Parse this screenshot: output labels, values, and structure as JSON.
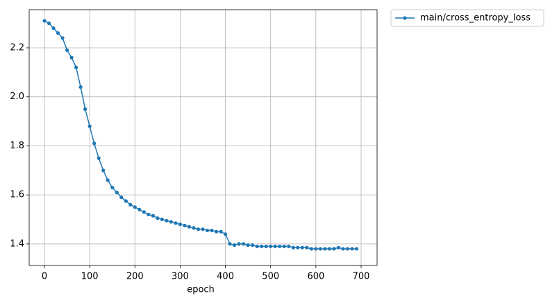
{
  "chart_data": {
    "type": "line",
    "xlabel": "epoch",
    "x": [
      0,
      10,
      20,
      30,
      40,
      50,
      60,
      70,
      80,
      90,
      100,
      110,
      120,
      130,
      140,
      150,
      160,
      170,
      180,
      190,
      200,
      210,
      220,
      230,
      240,
      250,
      260,
      270,
      280,
      290,
      300,
      310,
      320,
      330,
      340,
      350,
      360,
      370,
      380,
      390,
      400,
      410,
      420,
      430,
      440,
      450,
      460,
      470,
      480,
      490,
      500,
      510,
      520,
      530,
      540,
      550,
      560,
      570,
      580,
      590,
      600,
      610,
      620,
      630,
      640,
      650,
      660,
      670,
      680,
      690
    ],
    "series": [
      {
        "name": "main/cross_entropy_loss",
        "color": "#1f77b4",
        "values": [
          2.31,
          2.3,
          2.28,
          2.26,
          2.24,
          2.19,
          2.16,
          2.12,
          2.04,
          1.95,
          1.88,
          1.81,
          1.75,
          1.7,
          1.66,
          1.63,
          1.61,
          1.59,
          1.575,
          1.56,
          1.55,
          1.54,
          1.53,
          1.52,
          1.515,
          1.505,
          1.5,
          1.495,
          1.49,
          1.485,
          1.48,
          1.475,
          1.47,
          1.465,
          1.46,
          1.46,
          1.455,
          1.455,
          1.45,
          1.45,
          1.44,
          1.4,
          1.395,
          1.4,
          1.4,
          1.395,
          1.395,
          1.39,
          1.39,
          1.39,
          1.39,
          1.39,
          1.39,
          1.39,
          1.39,
          1.385,
          1.385,
          1.385,
          1.385,
          1.38,
          1.38,
          1.38,
          1.38,
          1.38,
          1.38,
          1.385,
          1.38,
          1.38,
          1.38,
          1.38
        ]
      }
    ],
    "xlim": [
      -33.8,
      735.3
    ],
    "ylim": [
      1.312,
      2.3555
    ],
    "xticks": [
      0,
      100,
      200,
      300,
      400,
      500,
      600,
      700
    ],
    "yticks": [
      1.4,
      1.6,
      1.8,
      {
        "value": 2,
        "label": "2.0"
      },
      2.2
    ],
    "grid": true,
    "legend": "outside upper right"
  }
}
